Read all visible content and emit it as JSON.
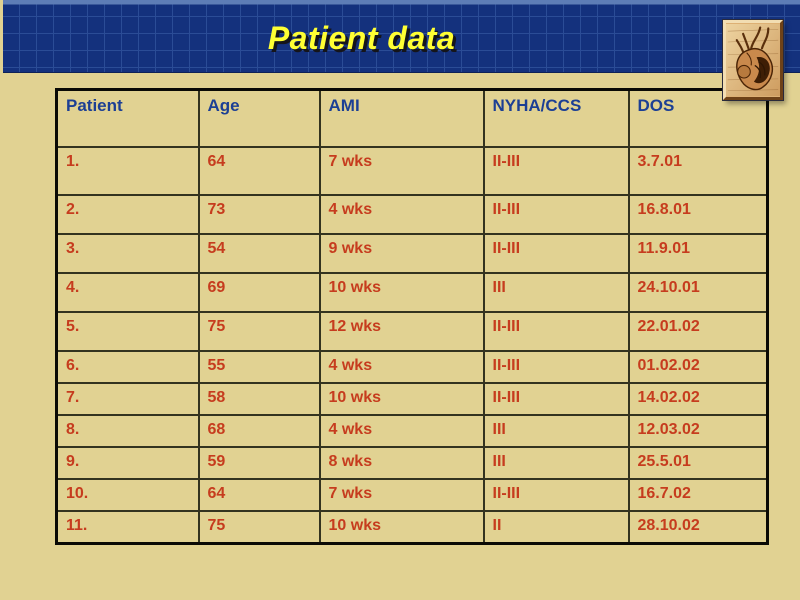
{
  "title": "Patient data",
  "table": {
    "columns": [
      "Patient",
      "Age",
      "AMI",
      "NYHA/CCS",
      "DOS"
    ],
    "rows": [
      [
        "1.",
        "64",
        "7 wks",
        "II-III",
        "3.7.01"
      ],
      [
        "2.",
        "73",
        "4 wks",
        "II-III",
        "16.8.01"
      ],
      [
        "3.",
        "54",
        "9 wks",
        "II-III",
        "11.9.01"
      ],
      [
        "4.",
        "69",
        "10 wks",
        "III",
        "24.10.01"
      ],
      [
        "5.",
        "75",
        "12 wks",
        "II-III",
        "22.01.02"
      ],
      [
        "6.",
        "55",
        "4 wks",
        "II-III",
        "01.02.02"
      ],
      [
        "7.",
        "58",
        "10 wks",
        "II-III",
        "14.02.02"
      ],
      [
        "8.",
        "68",
        "4 wks",
        "III",
        "12.03.02"
      ],
      [
        "9.",
        "59",
        "8 wks",
        "III",
        "25.5.01"
      ],
      [
        "10.",
        "64",
        "7 wks",
        "II-III",
        "16.7.02"
      ],
      [
        "11.",
        "75",
        "10 wks",
        "II",
        "28.10.02"
      ]
    ]
  },
  "icons": {
    "heart_illustration": "anatomical-heart-illustration"
  },
  "colors": {
    "banner_navy": "#14317D",
    "banner_grid": "#2B4C96",
    "background_tan": "#E1D292",
    "title_yellow": "#FFFF33",
    "header_text_blue": "#1C3F94",
    "data_text_red": "#C63C1E"
  }
}
